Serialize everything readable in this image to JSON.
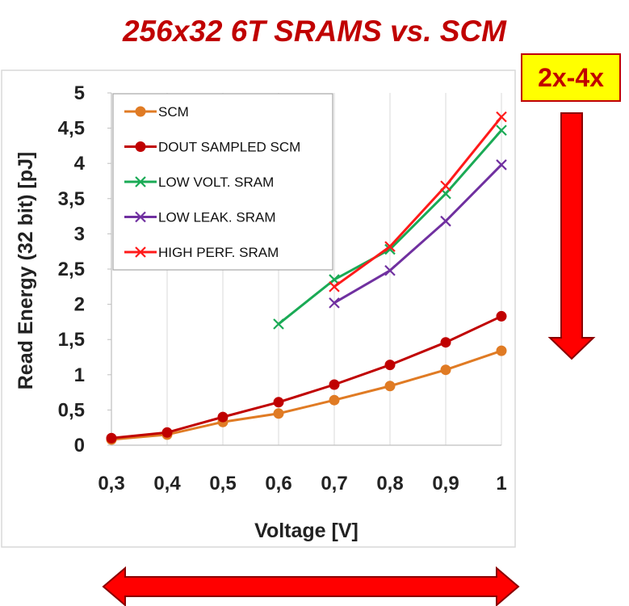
{
  "title": "256x32 6T SRAMS vs. SCM",
  "badge": "2x-4x",
  "colors": {
    "title": "#c00000",
    "badge_bg": "#ffff00",
    "arrow": "#ff0000"
  },
  "chart_data": {
    "type": "line",
    "xlabel": "Voltage [V]",
    "ylabel": "Read Energy (32 bit) [pJ]",
    "xlim": [
      0.3,
      1.0
    ],
    "ylim": [
      0,
      5
    ],
    "xticks": [
      "0,3",
      "0,4",
      "0,5",
      "0,6",
      "0,7",
      "0,8",
      "0,9",
      "1"
    ],
    "yticks": [
      "0",
      "0,5",
      "1",
      "1,5",
      "2",
      "2,5",
      "3",
      "3,5",
      "4",
      "4,5",
      "5"
    ],
    "grid": "vertical",
    "legend_position": "top-left",
    "series": [
      {
        "name": "SCM",
        "color": "#e07b24",
        "marker": "circle",
        "x": [
          0.3,
          0.4,
          0.5,
          0.6,
          0.7,
          0.8,
          0.9,
          1.0
        ],
        "y": [
          0.08,
          0.15,
          0.33,
          0.45,
          0.64,
          0.84,
          1.07,
          1.34
        ]
      },
      {
        "name": "DOUT SAMPLED SCM",
        "color": "#c00000",
        "marker": "circle",
        "x": [
          0.3,
          0.4,
          0.5,
          0.6,
          0.7,
          0.8,
          0.9,
          1.0
        ],
        "y": [
          0.1,
          0.18,
          0.4,
          0.61,
          0.86,
          1.14,
          1.46,
          1.83
        ]
      },
      {
        "name": "LOW VOLT. SRAM",
        "color": "#1aaa55",
        "marker": "x",
        "x": [
          0.6,
          0.7,
          0.8,
          0.9,
          1.0
        ],
        "y": [
          1.72,
          2.35,
          2.78,
          3.57,
          4.47
        ]
      },
      {
        "name": "LOW LEAK. SRAM",
        "color": "#7030a0",
        "marker": "x",
        "x": [
          0.7,
          0.8,
          0.9,
          1.0
        ],
        "y": [
          2.02,
          2.48,
          3.18,
          3.98
        ]
      },
      {
        "name": "HIGH PERF. SRAM",
        "color": "#ff1a1a",
        "marker": "x",
        "x": [
          0.7,
          0.8,
          0.9,
          1.0
        ],
        "y": [
          2.25,
          2.82,
          3.68,
          4.66
        ]
      }
    ]
  }
}
